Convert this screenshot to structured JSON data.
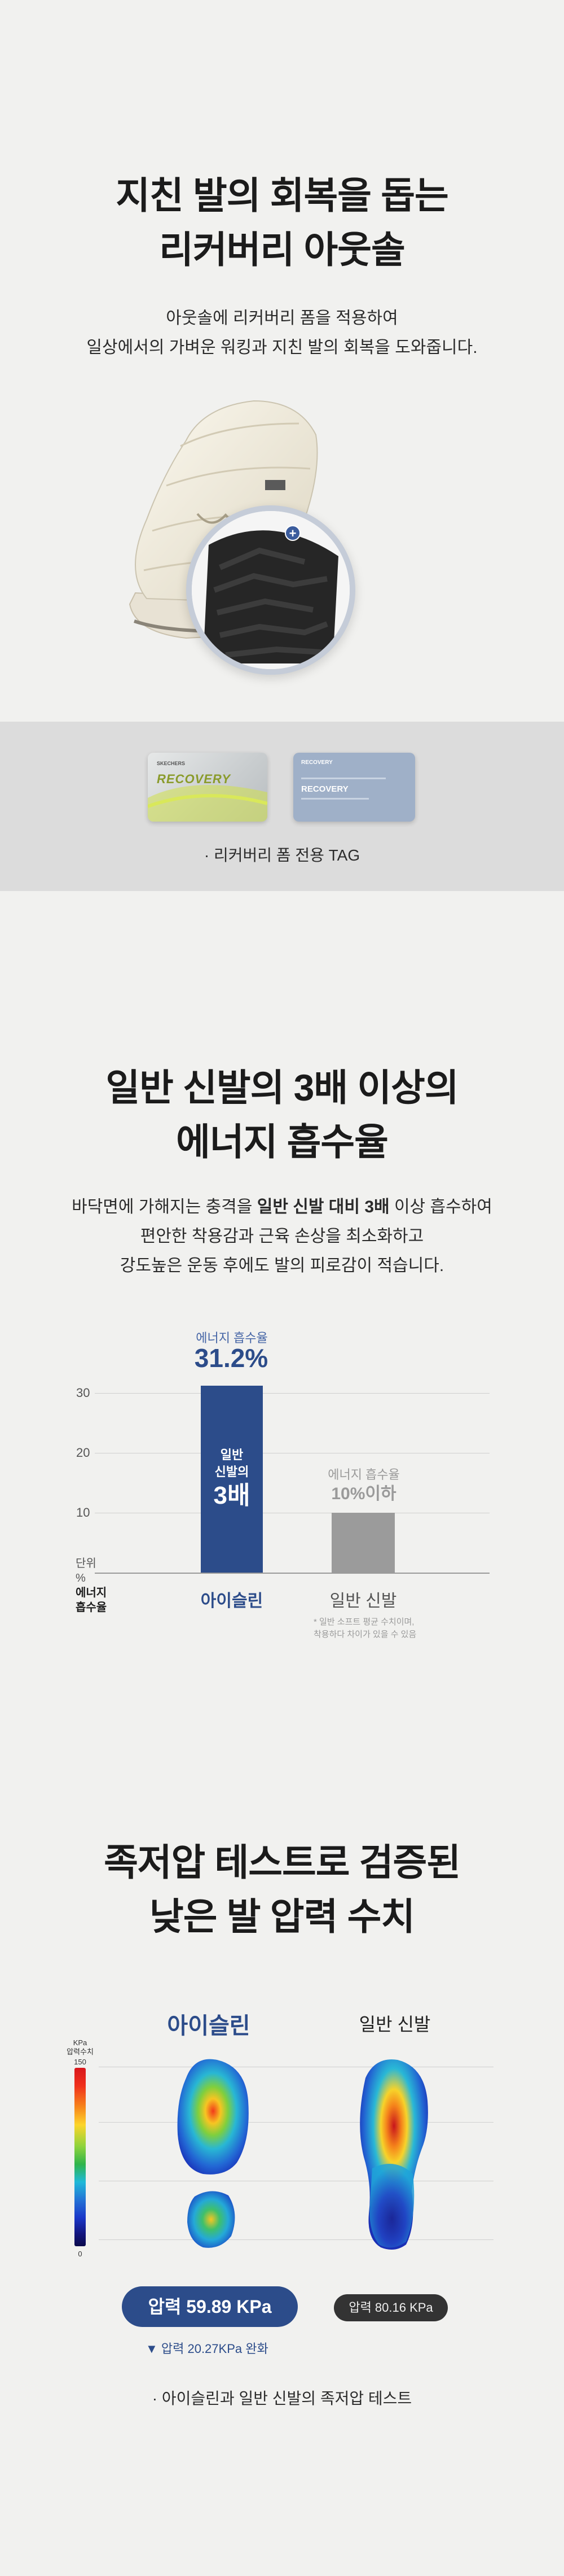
{
  "section1": {
    "title_line1": "지친 발의 회복을 돕는",
    "title_line2": "리커버리 아웃솔",
    "desc_line1": "아웃솔에 리커버리 폼을 적용하여",
    "desc_line2": "일상에서의 가벼운 워킹과 지친 발의 회복을 도와줍니다.",
    "tag1_logo": "RECOVERY",
    "tag1_top": "SKECHERS",
    "tag2_top": "RECOVERY",
    "tag2_logo": "RECOVERY",
    "tag_caption": "· 리커버리 폼 전용 TAG",
    "plus_symbol": "+"
  },
  "section2": {
    "title_line1": "일반 신발의 3배 이상의",
    "title_line2": "에너지 흡수율",
    "desc_line1_a": "바닥면에 가해지는 충격을 ",
    "desc_line1_b": "일반 신발 대비 3배",
    "desc_line1_c": " 이상 흡수하여",
    "desc_line2": "편안한 착용감과 근육 손상을 최소화하고",
    "desc_line3": "강도높은 운동 후에도 발의 피로감이 적습니다.",
    "bar_inner_line1": "일반",
    "bar_inner_line2": "신발의",
    "bar_inner_line3": "3배",
    "aislin_value_label": "에너지 흡수율",
    "aislin_value": "31.2%",
    "normal_value_label": "에너지 흡수율",
    "normal_value": "10%이하",
    "unit_label": "단위",
    "unit_percent": "%",
    "unit_line1": "에너지",
    "unit_line2": "흡수율",
    "note_line1": "* 일반 소프트 평균 수치이며,",
    "note_line2": "착용하다 차이가 있을 수 있음"
  },
  "chart_data": {
    "type": "bar",
    "categories": [
      "아이슬린",
      "일반 신발"
    ],
    "values": [
      31.2,
      10
    ],
    "ylabel": "에너지 흡수율 (%)",
    "yticks": [
      10,
      20,
      30
    ],
    "ylim": [
      0,
      33
    ],
    "colors": [
      "#2c4c8a",
      "#9b9b9b"
    ]
  },
  "section3": {
    "title_line1": "족저압 테스트로 검증된",
    "title_line2": "낮은 발 압력 수치",
    "label_aislin": "아이슬린",
    "label_normal": "일반 신발",
    "legend_title_line1": "KPa",
    "legend_title_line2": "압력수치",
    "legend_max": "150",
    "legend_min": "0",
    "aislin_pressure": "압력 59.89 KPa",
    "normal_pressure": "압력 80.16 KPa",
    "relief_text": "▼  압력 20.27KPa 완화",
    "caption": "·  아이슬린과 일반 신발의 족저압 테스트"
  }
}
